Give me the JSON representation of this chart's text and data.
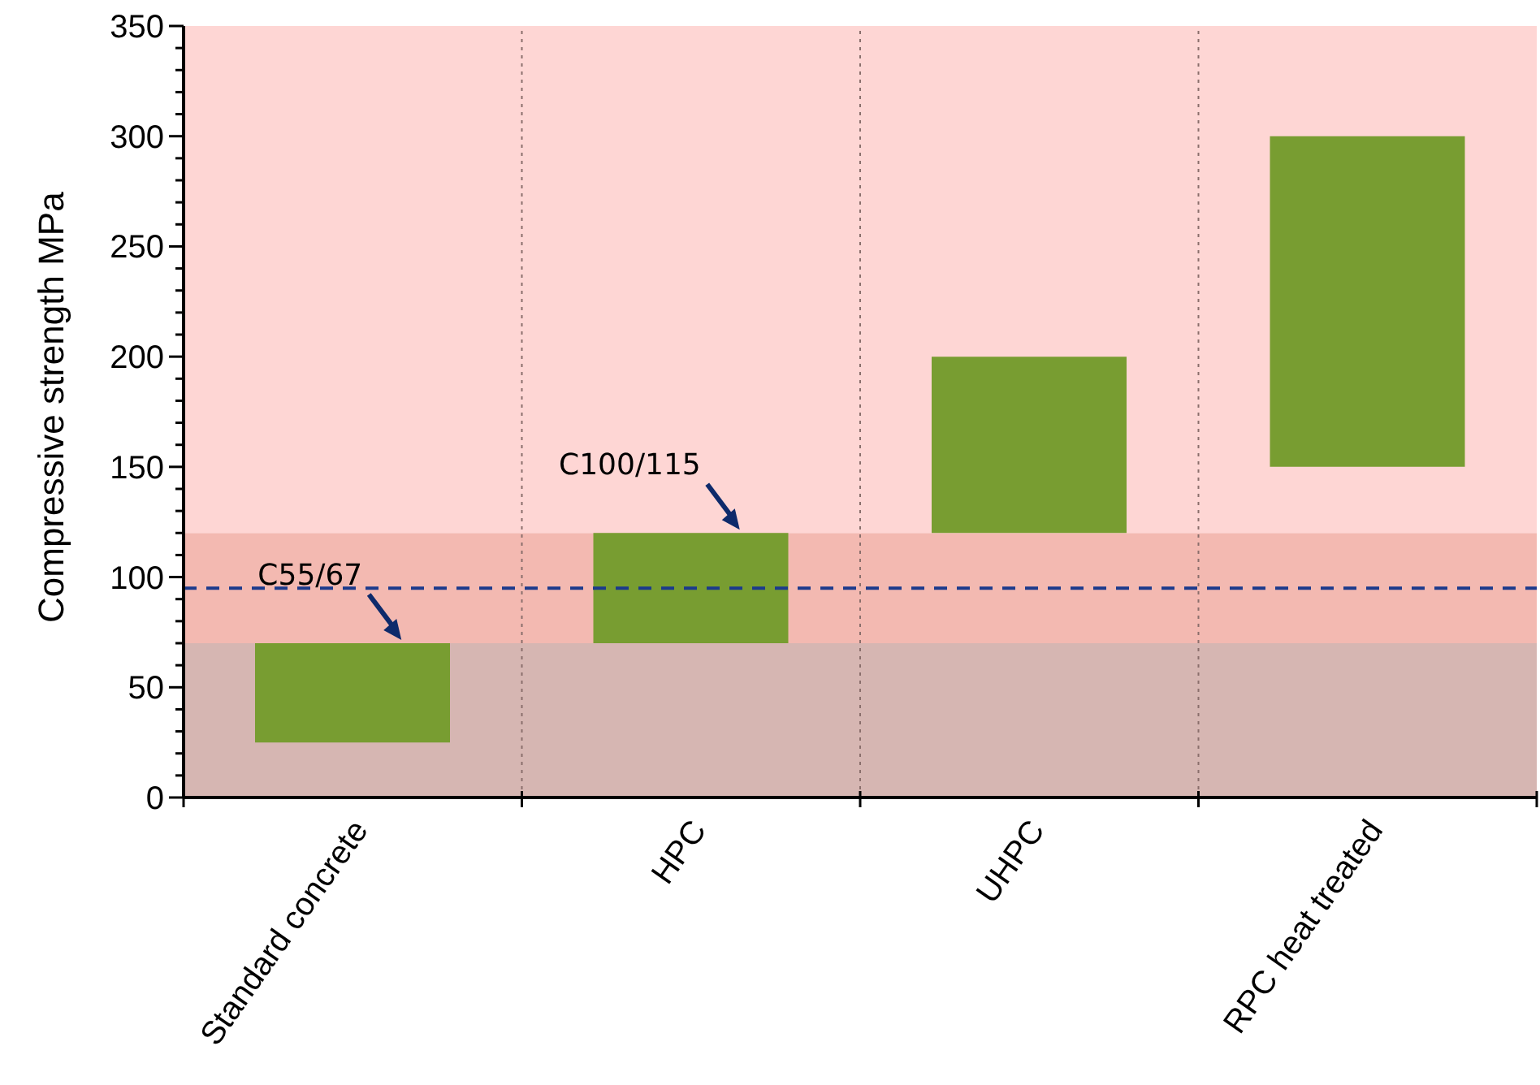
{
  "chart_data": {
    "type": "bar",
    "ylabel": "Compressive strength MPa",
    "categories": [
      "Standard concrete",
      "HPC",
      "UHPC",
      "RPC heat treated"
    ],
    "base": [
      25,
      70,
      120,
      150
    ],
    "values": [
      45,
      50,
      80,
      150
    ],
    "color": "#789d31",
    "ylim": [
      0,
      350
    ],
    "yticks": [
      0,
      {
        "value": 10,
        "label": null
      },
      {
        "value": 20,
        "label": null
      },
      {
        "value": 30,
        "label": null
      },
      {
        "value": 40,
        "label": null
      },
      50,
      {
        "value": 60,
        "label": null
      },
      {
        "value": 70,
        "label": null
      },
      {
        "value": 80,
        "label": null
      },
      {
        "value": 90,
        "label": null
      },
      100,
      {
        "value": 110,
        "label": null
      },
      {
        "value": 120,
        "label": null
      },
      {
        "value": 130,
        "label": null
      },
      {
        "value": 140,
        "label": null
      },
      150,
      {
        "value": 160,
        "label": null
      },
      {
        "value": 170,
        "label": null
      },
      {
        "value": 180,
        "label": null
      },
      {
        "value": 190,
        "label": null
      },
      200,
      {
        "value": 210,
        "label": null
      },
      {
        "value": 220,
        "label": null
      },
      {
        "value": 230,
        "label": null
      },
      {
        "value": 240,
        "label": null
      },
      250,
      {
        "value": 260,
        "label": null
      },
      {
        "value": 270,
        "label": null
      },
      {
        "value": 280,
        "label": null
      },
      {
        "value": 290,
        "label": null
      },
      300,
      {
        "value": 310,
        "label": null
      },
      {
        "value": 320,
        "label": null
      },
      {
        "value": 330,
        "label": null
      },
      {
        "value": 340,
        "label": null
      },
      350
    ],
    "grid": "x",
    "bands": [
      {
        "axis": "y",
        "from": 0,
        "to": 70,
        "color": "#d6b6b2"
      },
      {
        "axis": "y",
        "from": 70,
        "to": 120,
        "color": "#f3b9b1"
      },
      {
        "axis": "y",
        "from": 120,
        "to": 350,
        "color": "#fed6d4"
      }
    ],
    "ref_lines": [
      {
        "axis": "y",
        "value": 95,
        "color": "#1b3a8c",
        "line_style": "dashed"
      }
    ],
    "annotations": [
      {
        "text": "C55/67",
        "x": "Standard concrete",
        "y": 70
      },
      {
        "text": "C100/115",
        "x": "HPC",
        "y": 120
      }
    ]
  }
}
